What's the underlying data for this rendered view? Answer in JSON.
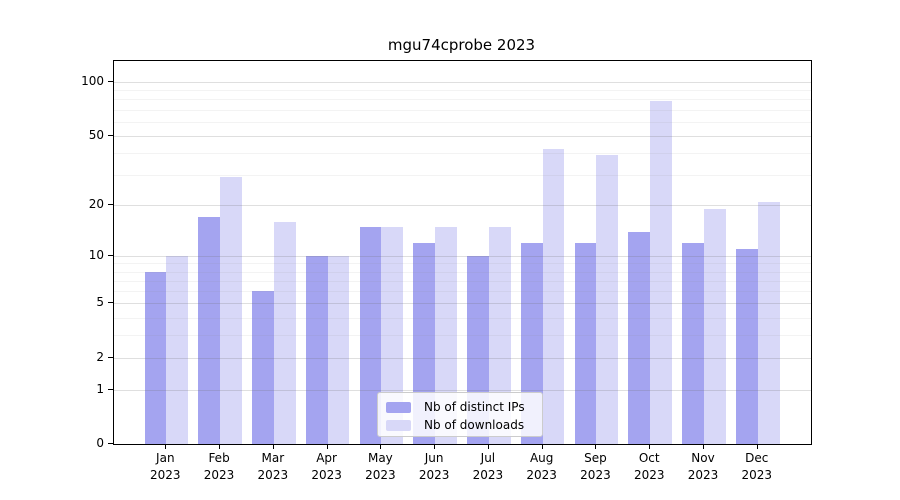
{
  "title": "mgu74cprobe 2023",
  "colors": {
    "ips_bar": "#a4a4f0",
    "downloads_bar": "#d8d8f8",
    "spine": "#000000",
    "grid_major": "#d9d9d9",
    "grid_minor": "#efefef",
    "legend_border": "#cccccc"
  },
  "legend": {
    "items": [
      {
        "label": "Nb of distinct IPs",
        "color_key": "ips_bar"
      },
      {
        "label": "Nb of downloads",
        "color_key": "downloads_bar"
      }
    ]
  },
  "chart_data": {
    "type": "bar",
    "title": "mgu74cprobe 2023",
    "categories": [
      "Jan 2023",
      "Feb 2023",
      "Mar 2023",
      "Apr 2023",
      "May 2023",
      "Jun 2023",
      "Jul 2023",
      "Aug 2023",
      "Sep 2023",
      "Oct 2023",
      "Nov 2023",
      "Dec 2023"
    ],
    "series": [
      {
        "name": "Nb of distinct IPs",
        "color_key": "ips_bar",
        "values": [
          8,
          17,
          6,
          10,
          15,
          12,
          10,
          12,
          12,
          14,
          12,
          11
        ]
      },
      {
        "name": "Nb of downloads",
        "color_key": "downloads_bar",
        "values": [
          10,
          29,
          16,
          10,
          15,
          15,
          15,
          42,
          39,
          78,
          19,
          21
        ]
      }
    ],
    "xlabel": "",
    "ylabel": "",
    "yscale": "log1p",
    "ylim": [
      0,
      131
    ],
    "y_major_ticks": [
      0,
      1,
      2,
      5,
      10,
      20,
      50,
      100
    ],
    "y_minor_ticks": [
      3,
      4,
      6,
      7,
      8,
      9,
      30,
      40,
      60,
      70,
      80,
      90
    ],
    "grid": true,
    "legend_position": "lower center"
  }
}
